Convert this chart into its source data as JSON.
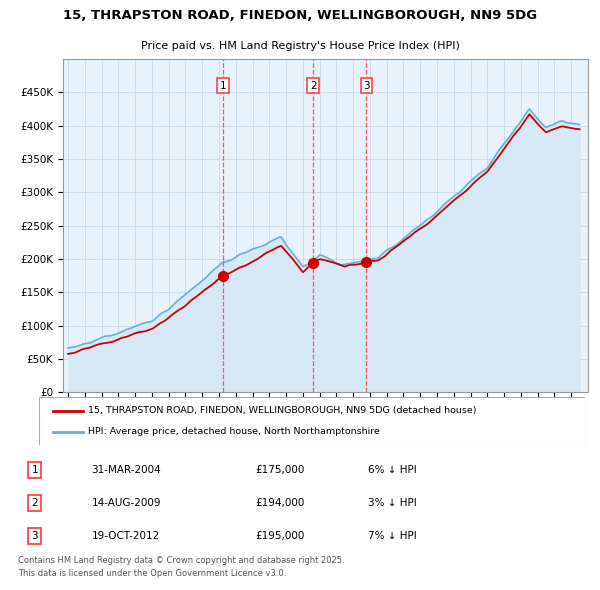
{
  "title": "15, THRAPSTON ROAD, FINEDON, WELLINGBOROUGH, NN9 5DG",
  "subtitle": "Price paid vs. HM Land Registry's House Price Index (HPI)",
  "footer": "Contains HM Land Registry data © Crown copyright and database right 2025.\nThis data is licensed under the Open Government Licence v3.0.",
  "legend_line1": "15, THRAPSTON ROAD, FINEDON, WELLINGBOROUGH, NN9 5DG (detached house)",
  "legend_line2": "HPI: Average price, detached house, North Northamptonshire",
  "transactions": [
    {
      "num": 1,
      "date": "31-MAR-2004",
      "price": 175000,
      "pct": "6%",
      "dir": "↓",
      "year": 2004.25
    },
    {
      "num": 2,
      "date": "14-AUG-2009",
      "price": 194000,
      "pct": "3%",
      "dir": "↓",
      "year": 2009.62
    },
    {
      "num": 3,
      "date": "19-OCT-2012",
      "price": 195000,
      "pct": "7%",
      "dir": "↓",
      "year": 2012.79
    }
  ],
  "ylim": [
    0,
    500000
  ],
  "yticks": [
    0,
    50000,
    100000,
    150000,
    200000,
    250000,
    300000,
    350000,
    400000,
    450000,
    500000
  ],
  "hpi_color": "#6aaed6",
  "hpi_fill_color": "#d6e8f5",
  "price_color": "#cc0000",
  "dashed_color": "#ff4444",
  "background_color": "#ffffff",
  "chart_bg_color": "#e8f2fa",
  "grid_color": "#c8d8e8"
}
